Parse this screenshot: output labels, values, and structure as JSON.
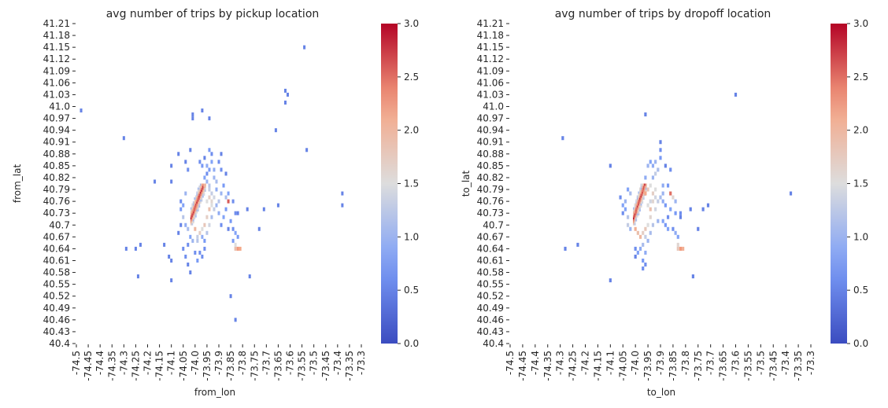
{
  "chart_data": [
    {
      "type": "heatmap",
      "title": "avg number of trips by pickup location",
      "xlabel": "from_lon",
      "ylabel": "from_lat",
      "x_tick_labels": [
        "-74.5",
        "-74.45",
        "-74.4",
        "-74.35",
        "-74.3",
        "-74.25",
        "-74.2",
        "-74.15",
        "-74.1",
        "-74.05",
        "-74.0",
        "-73.95",
        "-73.9",
        "-73.85",
        "-73.8",
        "-73.75",
        "-73.7",
        "-73.65",
        "-73.6",
        "-73.55",
        "-73.5",
        "-73.45",
        "-73.4",
        "-73.35",
        "-73.3"
      ],
      "y_tick_labels": [
        "41.21",
        "41.18",
        "41.15",
        "41.12",
        "41.09",
        "41.06",
        "41.03",
        "41.0",
        "40.97",
        "40.94",
        "40.91",
        "40.88",
        "40.85",
        "40.82",
        "40.79",
        "40.76",
        "40.73",
        "40.7",
        "40.67",
        "40.64",
        "40.61",
        "40.58",
        "40.55",
        "40.52",
        "40.49",
        "40.46",
        "40.43",
        "40.4"
      ],
      "xlim": [
        -74.5,
        -73.3
      ],
      "ylim": [
        40.4,
        41.21
      ],
      "colorbar": {
        "min": 0.0,
        "max": 3.0,
        "ticks": [
          "0.0",
          "0.5",
          "1.0",
          "1.5",
          "2.0",
          "2.5",
          "3.0"
        ],
        "colormap": "coolwarm"
      },
      "core": {
        "lon_start": -74.02,
        "lat_start": 40.7,
        "lon_end": -73.955,
        "lat_end": 40.805,
        "avg_value": 2.7
      },
      "points": [
        [
          -74.48,
          40.99,
          0.5
        ],
        [
          -74.3,
          40.92,
          0.5
        ],
        [
          -73.54,
          41.15,
          0.5
        ],
        [
          -73.62,
          41.04,
          0.5
        ],
        [
          -73.61,
          41.03,
          0.5
        ],
        [
          -73.62,
          41.01,
          0.5
        ],
        [
          -73.53,
          40.89,
          0.5
        ],
        [
          -73.66,
          40.94,
          0.5
        ],
        [
          -73.38,
          40.78,
          0.5
        ],
        [
          -73.38,
          40.75,
          0.5
        ],
        [
          -74.29,
          40.64,
          0.5
        ],
        [
          -74.25,
          40.64,
          0.5
        ],
        [
          -74.23,
          40.65,
          0.5
        ],
        [
          -74.24,
          40.57,
          0.5
        ],
        [
          -74.17,
          40.81,
          0.5
        ],
        [
          -74.13,
          40.65,
          0.5
        ],
        [
          -74.1,
          40.85,
          0.5
        ],
        [
          -74.1,
          40.81,
          0.5
        ],
        [
          -74.07,
          40.88,
          0.5
        ],
        [
          -74.04,
          40.86,
          0.5
        ],
        [
          -74.03,
          40.84,
          0.6
        ],
        [
          -74.02,
          40.89,
          0.5
        ],
        [
          -74.01,
          40.98,
          0.5
        ],
        [
          -74.01,
          40.97,
          0.5
        ],
        [
          -73.97,
          40.99,
          0.5
        ],
        [
          -73.94,
          40.97,
          0.5
        ],
        [
          -74.11,
          40.62,
          0.5
        ],
        [
          -74.1,
          40.61,
          0.5
        ],
        [
          -74.1,
          40.56,
          0.5
        ],
        [
          -74.07,
          40.68,
          0.5
        ],
        [
          -74.06,
          40.7,
          0.5
        ],
        [
          -74.05,
          40.64,
          0.6
        ],
        [
          -74.04,
          40.62,
          0.6
        ],
        [
          -74.03,
          40.6,
          0.5
        ],
        [
          -74.02,
          40.58,
          0.5
        ],
        [
          -74.0,
          40.63,
          0.6
        ],
        [
          -73.99,
          40.61,
          0.7
        ],
        [
          -73.97,
          40.62,
          0.6
        ],
        [
          -73.96,
          40.64,
          0.6
        ],
        [
          -73.94,
          40.89,
          0.7
        ],
        [
          -73.93,
          40.88,
          0.6
        ],
        [
          -73.93,
          40.86,
          0.8
        ],
        [
          -73.92,
          40.84,
          0.9
        ],
        [
          -73.92,
          40.82,
          1.0
        ],
        [
          -73.91,
          40.81,
          1.1
        ],
        [
          -73.94,
          40.84,
          0.7
        ],
        [
          -73.96,
          40.82,
          0.8
        ],
        [
          -73.95,
          40.83,
          0.6
        ],
        [
          -73.9,
          40.86,
          0.6
        ],
        [
          -73.89,
          40.88,
          0.5
        ],
        [
          -73.89,
          40.84,
          0.6
        ],
        [
          -73.87,
          40.83,
          0.5
        ],
        [
          -73.93,
          40.78,
          1.3
        ],
        [
          -73.92,
          40.77,
          1.4
        ],
        [
          -73.93,
          40.76,
          1.6
        ],
        [
          -73.92,
          40.74,
          1.3
        ],
        [
          -73.9,
          40.76,
          1.2
        ],
        [
          -73.89,
          40.78,
          1.0
        ],
        [
          -73.91,
          40.75,
          1.0
        ],
        [
          -73.94,
          40.74,
          1.9
        ],
        [
          -73.95,
          40.72,
          1.7
        ],
        [
          -73.94,
          40.7,
          1.4
        ],
        [
          -73.96,
          40.7,
          1.8
        ],
        [
          -73.97,
          40.69,
          1.5
        ],
        [
          -73.98,
          40.68,
          1.7
        ],
        [
          -73.99,
          40.67,
          1.3
        ],
        [
          -74.0,
          40.69,
          2.0
        ],
        [
          -73.95,
          40.68,
          1.2
        ],
        [
          -73.93,
          40.72,
          1.1
        ],
        [
          -73.9,
          40.73,
          0.9
        ],
        [
          -73.88,
          40.72,
          0.8
        ],
        [
          -73.86,
          40.76,
          2.6
        ],
        [
          -73.87,
          40.77,
          1.1
        ],
        [
          -73.86,
          40.78,
          0.8
        ],
        [
          -73.85,
          40.71,
          0.7
        ],
        [
          -73.84,
          40.69,
          0.6
        ],
        [
          -73.83,
          40.68,
          0.8
        ],
        [
          -73.82,
          40.67,
          0.7
        ],
        [
          -73.83,
          40.65,
          1.5
        ],
        [
          -73.82,
          40.64,
          2.3
        ],
        [
          -73.81,
          40.64,
          2.2
        ],
        [
          -73.83,
          40.64,
          1.9
        ],
        [
          -73.84,
          40.76,
          0.6
        ],
        [
          -73.83,
          40.73,
          0.6
        ],
        [
          -73.82,
          40.73,
          0.5
        ],
        [
          -73.78,
          40.74,
          0.5
        ],
        [
          -73.77,
          40.57,
          0.5
        ],
        [
          -73.73,
          40.69,
          0.5
        ],
        [
          -73.71,
          40.74,
          0.5
        ],
        [
          -73.65,
          40.75,
          0.5
        ],
        [
          -73.85,
          40.52,
          0.5
        ],
        [
          -73.83,
          40.46,
          0.5
        ],
        [
          -74.06,
          40.76,
          0.6
        ],
        [
          -74.05,
          40.75,
          0.8
        ],
        [
          -74.06,
          40.74,
          0.7
        ],
        [
          -74.04,
          40.78,
          1.0
        ],
        [
          -74.05,
          40.72,
          1.2
        ],
        [
          -74.04,
          40.7,
          0.9
        ],
        [
          -74.03,
          40.69,
          1.1
        ],
        [
          -74.02,
          40.67,
          0.8
        ],
        [
          -74.01,
          40.66,
          1.0
        ],
        [
          -73.99,
          40.66,
          1.2
        ],
        [
          -73.97,
          40.67,
          0.9
        ],
        [
          -73.96,
          40.66,
          0.7
        ],
        [
          -73.98,
          40.86,
          0.6
        ],
        [
          -73.97,
          40.85,
          0.7
        ],
        [
          -73.96,
          40.87,
          0.5
        ],
        [
          -73.95,
          40.85,
          0.9
        ],
        [
          -73.94,
          40.8,
          1.2
        ],
        [
          -73.96,
          40.8,
          2.0
        ],
        [
          -73.91,
          40.79,
          0.9
        ],
        [
          -73.88,
          40.8,
          0.7
        ],
        [
          -73.87,
          40.74,
          0.7
        ],
        [
          -73.89,
          40.7,
          0.6
        ],
        [
          -73.86,
          40.69,
          0.5
        ],
        [
          -73.84,
          40.66,
          0.7
        ],
        [
          -73.95,
          40.76,
          1.5
        ],
        [
          -73.94,
          40.77,
          1.7
        ],
        [
          -73.93,
          40.75,
          1.5
        ],
        [
          -73.94,
          40.79,
          1.3
        ],
        [
          -73.95,
          40.81,
          1.0
        ],
        [
          -74.03,
          40.65,
          0.6
        ],
        [
          -73.98,
          40.63,
          0.6
        ]
      ]
    },
    {
      "type": "heatmap",
      "title": "avg number of trips by dropoff location",
      "xlabel": "to_lon",
      "ylabel": "to_lat",
      "x_tick_labels": [
        "-74.5",
        "-74.45",
        "-74.4",
        "-74.35",
        "-74.3",
        "-74.25",
        "-74.2",
        "-74.15",
        "-74.1",
        "-74.05",
        "-74.0",
        "-73.95",
        "-73.9",
        "-73.85",
        "-73.8",
        "-73.75",
        "-73.7",
        "-73.65",
        "-73.6",
        "-73.55",
        "-73.5",
        "-73.45",
        "-73.4",
        "-73.35",
        "-73.3"
      ],
      "y_tick_labels": [
        "41.21",
        "41.18",
        "41.15",
        "41.12",
        "41.09",
        "41.06",
        "41.03",
        "41.0",
        "40.97",
        "40.94",
        "40.91",
        "40.88",
        "40.85",
        "40.82",
        "40.79",
        "40.76",
        "40.73",
        "40.7",
        "40.67",
        "40.64",
        "40.61",
        "40.58",
        "40.55",
        "40.52",
        "40.49",
        "40.46",
        "40.43",
        "40.4"
      ],
      "xlim": [
        -74.5,
        -73.3
      ],
      "ylim": [
        40.4,
        41.21
      ],
      "colorbar": {
        "min": 0.0,
        "max": 3.0,
        "ticks": [
          "0.0",
          "0.5",
          "1.0",
          "1.5",
          "2.0",
          "2.5",
          "3.0"
        ],
        "colormap": "coolwarm"
      },
      "core": {
        "lon_start": -74.01,
        "lat_start": 40.7,
        "lon_end": -73.955,
        "lat_end": 40.805,
        "avg_value": 2.7
      },
      "points": [
        [
          -73.6,
          41.03,
          0.5
        ],
        [
          -73.38,
          40.78,
          0.5
        ],
        [
          -74.29,
          40.92,
          0.5
        ],
        [
          -74.1,
          40.85,
          0.5
        ],
        [
          -73.96,
          40.98,
          0.5
        ],
        [
          -73.9,
          40.91,
          0.5
        ],
        [
          -73.9,
          40.89,
          0.6
        ],
        [
          -73.9,
          40.87,
          0.7
        ],
        [
          -73.92,
          40.86,
          1.0
        ],
        [
          -73.93,
          40.85,
          0.9
        ],
        [
          -73.91,
          40.84,
          1.1
        ],
        [
          -73.92,
          40.83,
          1.3
        ],
        [
          -73.93,
          40.82,
          1.0
        ],
        [
          -73.95,
          40.85,
          1.0
        ],
        [
          -73.94,
          40.86,
          0.8
        ],
        [
          -73.96,
          40.82,
          0.9
        ],
        [
          -73.88,
          40.85,
          0.5
        ],
        [
          -73.86,
          40.84,
          0.6
        ],
        [
          -73.87,
          40.8,
          0.7
        ],
        [
          -73.89,
          40.8,
          0.9
        ],
        [
          -73.92,
          40.79,
          1.5
        ],
        [
          -73.93,
          40.78,
          1.7
        ],
        [
          -73.92,
          40.77,
          1.4
        ],
        [
          -73.93,
          40.76,
          1.6
        ],
        [
          -73.91,
          40.76,
          1.3
        ],
        [
          -73.9,
          40.77,
          1.1
        ],
        [
          -73.89,
          40.78,
          1.0
        ],
        [
          -73.86,
          40.78,
          2.5
        ],
        [
          -73.85,
          40.77,
          1.6
        ],
        [
          -73.84,
          40.76,
          1.0
        ],
        [
          -73.86,
          40.74,
          0.8
        ],
        [
          -73.84,
          40.73,
          0.7
        ],
        [
          -73.82,
          40.73,
          0.6
        ],
        [
          -73.92,
          40.74,
          1.4
        ],
        [
          -73.94,
          40.74,
          1.9
        ],
        [
          -73.94,
          40.72,
          1.6
        ],
        [
          -73.95,
          40.7,
          1.5
        ],
        [
          -73.96,
          40.69,
          1.8
        ],
        [
          -73.97,
          40.68,
          1.7
        ],
        [
          -73.98,
          40.67,
          2.0
        ],
        [
          -73.99,
          40.68,
          1.9
        ],
        [
          -74.0,
          40.69,
          2.1
        ],
        [
          -73.96,
          40.67,
          1.3
        ],
        [
          -73.94,
          40.68,
          1.1
        ],
        [
          -73.95,
          40.66,
          1.0
        ],
        [
          -73.97,
          40.65,
          1.1
        ],
        [
          -73.98,
          40.64,
          0.9
        ],
        [
          -73.99,
          40.63,
          0.8
        ],
        [
          -73.96,
          40.63,
          0.9
        ],
        [
          -73.97,
          40.61,
          0.7
        ],
        [
          -73.96,
          40.6,
          0.6
        ],
        [
          -73.97,
          40.59,
          0.6
        ],
        [
          -74.0,
          40.62,
          0.5
        ],
        [
          -74.0,
          40.64,
          0.6
        ],
        [
          -73.93,
          40.7,
          1.2
        ],
        [
          -73.91,
          40.71,
          1.0
        ],
        [
          -73.89,
          40.71,
          0.8
        ],
        [
          -73.88,
          40.7,
          0.7
        ],
        [
          -73.87,
          40.69,
          0.8
        ],
        [
          -73.85,
          40.69,
          0.6
        ],
        [
          -73.84,
          40.68,
          0.9
        ],
        [
          -73.83,
          40.67,
          0.8
        ],
        [
          -73.83,
          40.65,
          1.6
        ],
        [
          -73.82,
          40.64,
          2.3
        ],
        [
          -73.81,
          40.64,
          2.1
        ],
        [
          -73.83,
          40.64,
          1.8
        ],
        [
          -73.82,
          40.72,
          0.5
        ],
        [
          -73.78,
          40.74,
          0.5
        ],
        [
          -73.73,
          40.74,
          0.5
        ],
        [
          -73.71,
          40.75,
          0.5
        ],
        [
          -73.75,
          40.69,
          0.5
        ],
        [
          -73.77,
          40.57,
          0.5
        ],
        [
          -74.1,
          40.56,
          0.5
        ],
        [
          -74.28,
          40.64,
          0.5
        ],
        [
          -74.23,
          40.65,
          0.5
        ],
        [
          -74.06,
          40.77,
          0.6
        ],
        [
          -74.05,
          40.75,
          0.8
        ],
        [
          -74.04,
          40.76,
          1.0
        ],
        [
          -74.04,
          40.74,
          0.8
        ],
        [
          -74.05,
          40.73,
          0.6
        ],
        [
          -74.03,
          40.72,
          1.2
        ],
        [
          -74.03,
          40.7,
          1.3
        ],
        [
          -74.02,
          40.69,
          1.0
        ],
        [
          -74.03,
          40.79,
          0.8
        ],
        [
          -74.02,
          40.78,
          1.1
        ],
        [
          -73.96,
          40.78,
          2.2
        ],
        [
          -73.95,
          40.79,
          1.8
        ],
        [
          -73.94,
          40.8,
          1.5
        ],
        [
          -73.95,
          40.75,
          1.5
        ],
        [
          -73.94,
          40.76,
          1.4
        ],
        [
          -73.89,
          40.76,
          0.9
        ],
        [
          -73.88,
          40.75,
          0.7
        ],
        [
          -73.87,
          40.72,
          0.6
        ]
      ]
    }
  ]
}
